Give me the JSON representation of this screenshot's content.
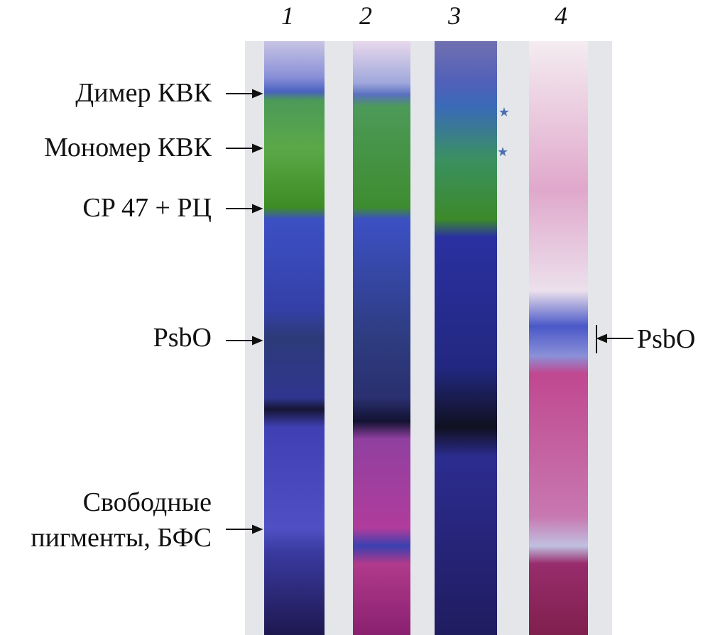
{
  "lane_numbers": [
    "1",
    "2",
    "3",
    "4"
  ],
  "left_labels": [
    {
      "lines": [
        "Димер КВК"
      ]
    },
    {
      "lines": [
        "Мономер КВК"
      ]
    },
    {
      "lines": [
        "CP 47 + РЦ"
      ]
    },
    {
      "lines": [
        "PsbO"
      ]
    },
    {
      "lines": [
        "Свободные",
        "пигменты, БФС"
      ]
    }
  ],
  "right_label": "PsbO"
}
